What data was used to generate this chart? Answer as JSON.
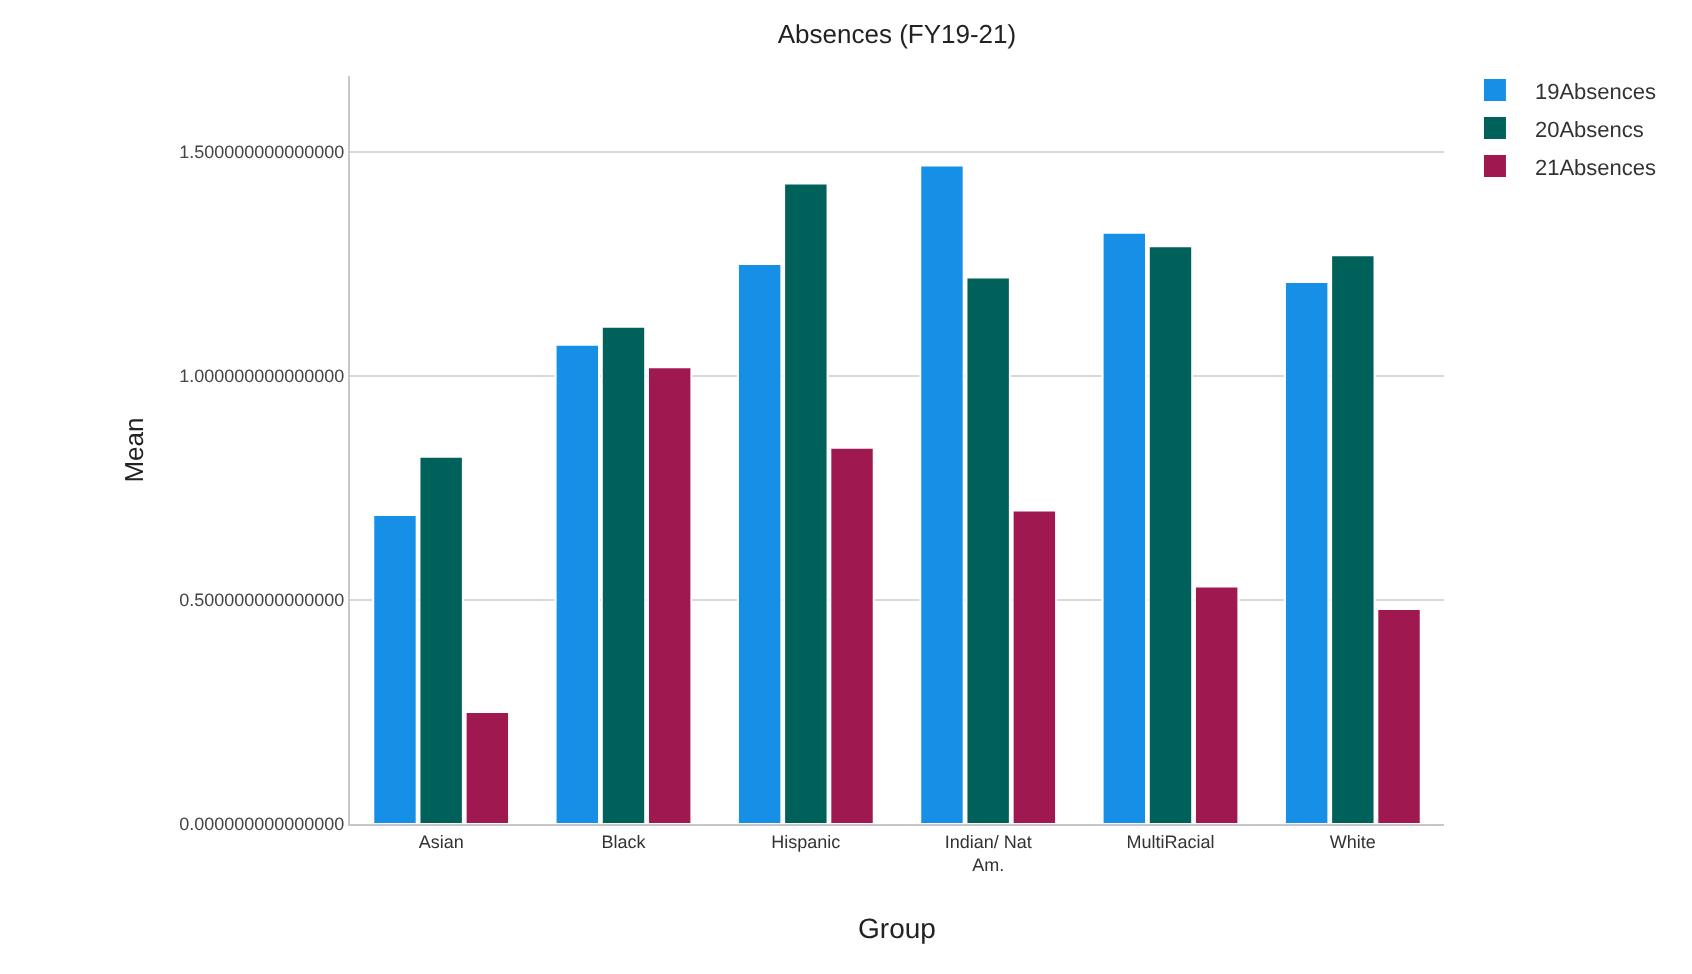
{
  "chart_data": {
    "type": "bar",
    "title": "Absences (FY19-21)",
    "xlabel": "Group",
    "ylabel": "Mean",
    "categories": [
      "Asian",
      "Black",
      "Hispanic",
      "Indian/ Nat Am.",
      "MultiRacial",
      "White"
    ],
    "series": [
      {
        "name": "19Absences",
        "color": "#1590e6",
        "values": [
          0.69,
          1.07,
          1.25,
          1.47,
          1.32,
          1.21
        ]
      },
      {
        "name": "20Absencs",
        "color": "#00605a",
        "values": [
          0.82,
          1.11,
          1.43,
          1.22,
          1.29,
          1.27
        ]
      },
      {
        "name": "21Absences",
        "color": "#a01850",
        "values": [
          0.25,
          1.02,
          0.84,
          0.7,
          0.53,
          0.48
        ]
      }
    ],
    "ylim": [
      0,
      1.67
    ],
    "yticks": [
      {
        "value": 0,
        "label": "0.000000000000000"
      },
      {
        "value": 0.5,
        "label": "0.500000000000000"
      },
      {
        "value": 1,
        "label": "1.000000000000000"
      },
      {
        "value": 1.5,
        "label": "1.500000000000000"
      }
    ],
    "grid": "y",
    "legend": "top right"
  }
}
